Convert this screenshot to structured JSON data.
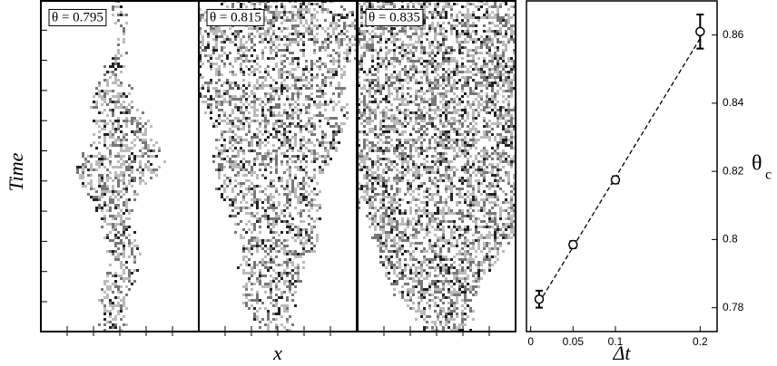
{
  "panels": [
    {
      "label": "θ = 0.795"
    },
    {
      "label": "θ = 0.815"
    },
    {
      "label": "θ = 0.835"
    }
  ],
  "panels_x_label": "x",
  "panels_y_label": "Time",
  "chart_data": {
    "type": "scatter",
    "xlabel": "Δt",
    "ylabel_symbol": "θ",
    "ylabel_subscript": "c",
    "x": [
      0.01,
      0.05,
      0.1,
      0.2
    ],
    "values": [
      0.7825,
      0.7985,
      0.8175,
      0.861
    ],
    "errors": [
      0.0025,
      0.001,
      0.001,
      0.005
    ],
    "fit": {
      "x": [
        0.01,
        0.2
      ],
      "values": [
        0.7815,
        0.859
      ]
    },
    "xlim": [
      -0.005,
      0.22
    ],
    "ylim": [
      0.773,
      0.87
    ],
    "xticks": [
      0,
      0.05,
      0.1,
      0.2
    ],
    "yticks": [
      0.78,
      0.8,
      0.82,
      0.84,
      0.86
    ],
    "color": "#000000"
  }
}
